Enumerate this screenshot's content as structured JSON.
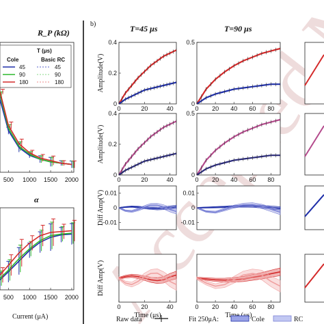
{
  "panel_label": "b)",
  "colors": {
    "cole45": "#1f2fa8",
    "cole90": "#2db82d",
    "cole180": "#d42a2a",
    "rc": "#7a82d6",
    "rc90": "#9fe09f",
    "rc180": "#f0a0a0",
    "fit180": "#f2b0b0"
  },
  "chart_data": [
    {
      "type": "line",
      "title": "R_P (kΩ)",
      "xlabel": "",
      "ylabel": "",
      "xlim": [
        300,
        2050
      ],
      "ylim": [
        0,
        1
      ],
      "xticks": [
        "500",
        "1000",
        "1500",
        "2000"
      ],
      "legend": {
        "header": "T (μs)",
        "columns": [
          "Cole",
          "Basic RC"
        ],
        "entries": [
          "45",
          "90",
          "180"
        ]
      },
      "x": [
        300,
        500,
        750,
        1000,
        1250,
        1500,
        1750,
        2000
      ],
      "series": [
        {
          "name": "Cole 45",
          "values": [
            0.56,
            0.32,
            0.19,
            0.13,
            0.1,
            0.08,
            0.07,
            0.06
          ]
        },
        {
          "name": "Cole 90",
          "values": [
            0.6,
            0.34,
            0.2,
            0.14,
            0.1,
            0.08,
            0.07,
            0.06
          ]
        },
        {
          "name": "Cole 180",
          "values": [
            0.62,
            0.36,
            0.22,
            0.15,
            0.11,
            0.09,
            0.07,
            0.06
          ]
        }
      ]
    },
    {
      "type": "line",
      "title": "α",
      "xlabel": "Current (μA)",
      "ylabel": "",
      "xlim": [
        300,
        2050
      ],
      "ylim": [
        0,
        1
      ],
      "xticks": [
        "500",
        "1000",
        "1500",
        "2000"
      ],
      "x": [
        300,
        500,
        750,
        1000,
        1250,
        1500,
        1750,
        2000
      ],
      "series": [
        {
          "name": "Cole 45",
          "values": [
            0.12,
            0.22,
            0.35,
            0.48,
            0.58,
            0.64,
            0.67,
            0.68
          ]
        },
        {
          "name": "Cole 90",
          "values": [
            0.14,
            0.24,
            0.38,
            0.5,
            0.6,
            0.66,
            0.68,
            0.69
          ]
        },
        {
          "name": "Cole 180",
          "values": [
            0.18,
            0.3,
            0.45,
            0.57,
            0.66,
            0.7,
            0.71,
            0.72
          ]
        }
      ]
    },
    {
      "type": "line",
      "column_title": "T=45 μs",
      "ylabel": "Amplitude(V)",
      "xlim": [
        0,
        45
      ],
      "ylim": [
        0,
        0.4
      ],
      "xticks": [
        "0",
        "20",
        "40"
      ],
      "yticks": [
        "0",
        "0.2",
        "0.4"
      ],
      "x": [
        0,
        5,
        10,
        15,
        20,
        25,
        30,
        35,
        40,
        45
      ],
      "series": [
        {
          "name": "red",
          "values": [
            0,
            0.07,
            0.12,
            0.17,
            0.21,
            0.25,
            0.28,
            0.31,
            0.33,
            0.35
          ]
        },
        {
          "name": "blue",
          "values": [
            0,
            0.03,
            0.05,
            0.07,
            0.09,
            0.1,
            0.11,
            0.12,
            0.13,
            0.14
          ]
        }
      ]
    },
    {
      "type": "line",
      "column_title": "T=90 μs",
      "ylabel": "",
      "xlim": [
        0,
        90
      ],
      "ylim": [
        0,
        0.5
      ],
      "xticks": [
        "0",
        "20",
        "40",
        "60",
        "80"
      ],
      "yticks": [
        "0",
        "0.5"
      ],
      "x": [
        0,
        10,
        20,
        30,
        40,
        50,
        60,
        70,
        80,
        90
      ],
      "series": [
        {
          "name": "red",
          "values": [
            0,
            0.12,
            0.2,
            0.26,
            0.31,
            0.35,
            0.38,
            0.41,
            0.43,
            0.45
          ]
        },
        {
          "name": "blue",
          "values": [
            0,
            0.05,
            0.08,
            0.1,
            0.12,
            0.13,
            0.14,
            0.15,
            0.16,
            0.16
          ]
        }
      ]
    },
    {
      "type": "line",
      "ylabel": "Amplitude(V)",
      "xlim": [
        0,
        45
      ],
      "ylim": [
        0,
        0.4
      ],
      "xticks": [
        "0",
        "20",
        "40"
      ],
      "yticks": [
        "0",
        "0.2",
        "0.4"
      ],
      "x": [
        0,
        5,
        10,
        15,
        20,
        25,
        30,
        35,
        40,
        45
      ],
      "series": [
        {
          "name": "pink",
          "values": [
            0,
            0.07,
            0.12,
            0.17,
            0.21,
            0.25,
            0.28,
            0.31,
            0.33,
            0.35
          ]
        },
        {
          "name": "navy",
          "values": [
            0,
            0.03,
            0.05,
            0.07,
            0.09,
            0.1,
            0.11,
            0.12,
            0.13,
            0.14
          ]
        }
      ]
    },
    {
      "type": "line",
      "ylabel": "",
      "xlim": [
        0,
        90
      ],
      "ylim": [
        0,
        0.5
      ],
      "xticks": [
        "0",
        "20",
        "40",
        "60",
        "80"
      ],
      "yticks": [
        "0",
        "0.5"
      ],
      "x": [
        0,
        10,
        20,
        30,
        40,
        50,
        60,
        70,
        80,
        90
      ],
      "series": [
        {
          "name": "pink",
          "values": [
            0,
            0.12,
            0.2,
            0.26,
            0.31,
            0.35,
            0.38,
            0.41,
            0.43,
            0.45
          ]
        },
        {
          "name": "navy",
          "values": [
            0,
            0.05,
            0.08,
            0.1,
            0.12,
            0.13,
            0.14,
            0.15,
            0.16,
            0.16
          ]
        }
      ]
    },
    {
      "type": "line",
      "ylabel": "Diff Amp(V)",
      "xlim": [
        0,
        45
      ],
      "ylim": [
        -0.015,
        0.015
      ],
      "yticks": [
        "0.01",
        "0",
        "-0.01"
      ],
      "x": [
        0,
        5,
        10,
        15,
        20,
        25,
        30,
        35,
        40,
        45
      ],
      "series": [
        {
          "name": "Cole",
          "values": [
            0,
            0.0005,
            0.0008,
            0.0005,
            0,
            -0.0004,
            -0.0006,
            -0.0003,
            0.0002,
            0.0006
          ]
        },
        {
          "name": "RC",
          "values": [
            0,
            -0.002,
            -0.0025,
            -0.0012,
            0.0005,
            0.0018,
            0.0018,
            0.0006,
            -0.0012,
            -0.0025
          ]
        }
      ]
    },
    {
      "type": "line",
      "ylabel": "",
      "xlim": [
        0,
        90
      ],
      "ylim": [
        -0.015,
        0.015
      ],
      "yticks": [
        "0.01",
        "0",
        "-0.01"
      ],
      "x": [
        0,
        10,
        20,
        30,
        40,
        50,
        60,
        70,
        80,
        90
      ],
      "series": [
        {
          "name": "Cole",
          "values": [
            0,
            0.0002,
            0.0004,
            0.0006,
            0.0009,
            0.0012,
            0.0012,
            0.0008,
            0.0002,
            -0.0004
          ]
        },
        {
          "name": "RC",
          "values": [
            0,
            -0.0025,
            -0.003,
            -0.0012,
            0.0008,
            0.002,
            0.0022,
            0.001,
            -0.001,
            -0.003
          ]
        }
      ]
    },
    {
      "type": "line",
      "ylabel": "Diff Amp(V)",
      "xlabel": "Time (μs)",
      "xlim": [
        0,
        45
      ],
      "ylim": [
        -0.015,
        0.015
      ],
      "xticks": [
        "0",
        "20",
        "40"
      ],
      "x": [
        0,
        5,
        10,
        15,
        20,
        25,
        30,
        35,
        40,
        45
      ],
      "series": [
        {
          "name": "Cole",
          "values": [
            0,
            0.001,
            0.0015,
            0.001,
            0,
            -0.001,
            -0.0015,
            -0.001,
            0.0008,
            0.002
          ]
        },
        {
          "name": "RC",
          "values": [
            0,
            -0.003,
            -0.004,
            -0.002,
            0.001,
            0.003,
            0.0032,
            0.001,
            -0.002,
            -0.004
          ]
        }
      ]
    },
    {
      "type": "line",
      "ylabel": "",
      "xlabel": "Time (μs)",
      "xlim": [
        0,
        90
      ],
      "ylim": [
        -0.015,
        0.015
      ],
      "xticks": [
        "0",
        "20",
        "40",
        "60",
        "80"
      ],
      "x": [
        0,
        10,
        20,
        30,
        40,
        50,
        60,
        70,
        80,
        90
      ],
      "series": [
        {
          "name": "Cole",
          "values": [
            0,
            -0.0005,
            -0.001,
            -0.0012,
            -0.001,
            -0.0005,
            0.0005,
            0.0015,
            0.0028,
            0.004
          ]
        },
        {
          "name": "RC",
          "values": [
            0,
            -0.003,
            -0.005,
            -0.004,
            -0.001,
            0.002,
            0.003,
            0.002,
            -0.002,
            -0.005
          ]
        }
      ]
    }
  ],
  "bottom_legend": {
    "raw_label": "Raw data",
    "fit_label": "Fit 250μA:",
    "cole_label": "Cole",
    "rc_label": "RC"
  },
  "watermark": "Accepted Manuscript"
}
